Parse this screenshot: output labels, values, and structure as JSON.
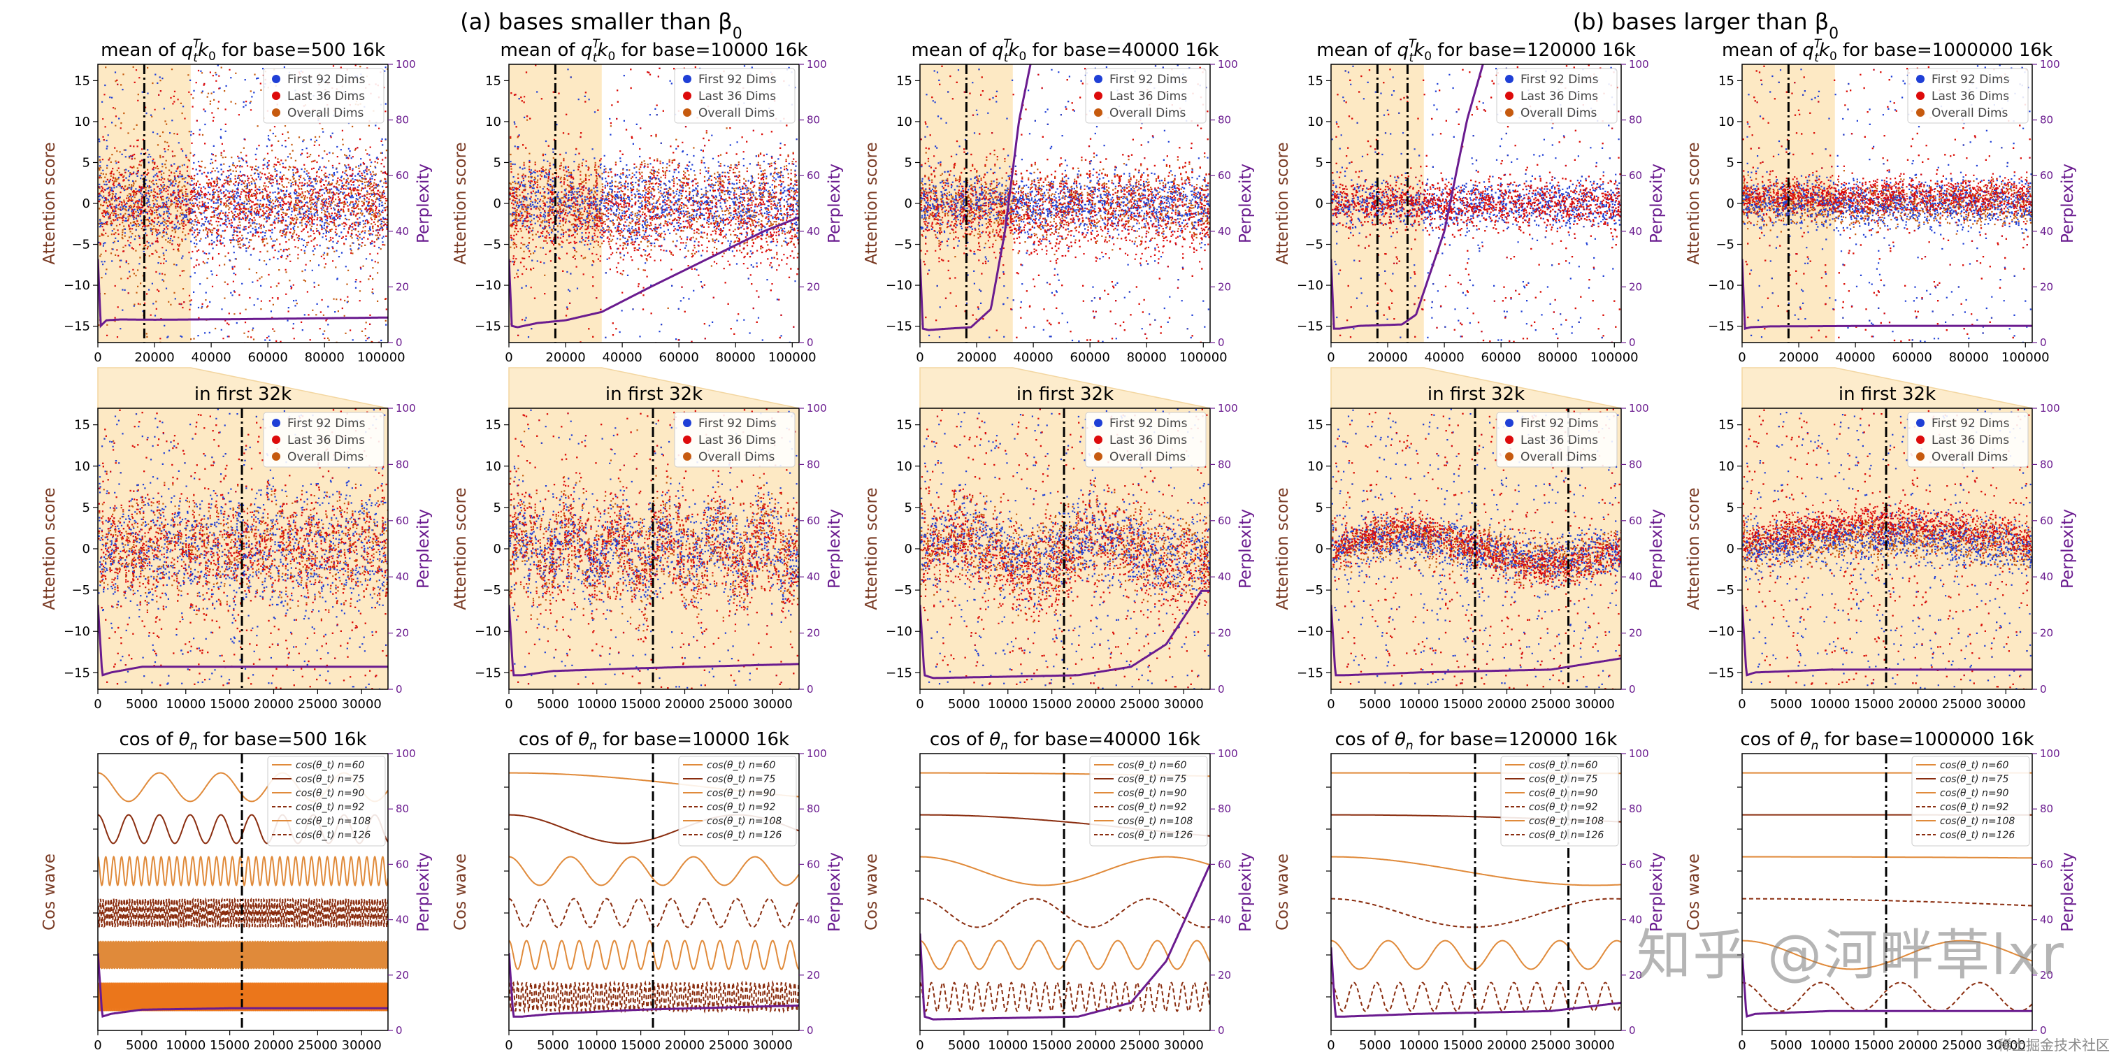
{
  "header": {
    "left_caption": "(a)  bases smaller than β",
    "left_caption_sub": "0",
    "right_caption": "(b)  bases larger than β",
    "right_caption_sub": "0"
  },
  "watermark": {
    "main": "知乎 @河畔草lxr",
    "corner": "稀土掘金技术社区"
  },
  "colors": {
    "first_dims": "#1f3fd6",
    "last_dims": "#dd0a0a",
    "overall_dims": "#c65a0e",
    "perplexity": "#6a1b8f",
    "shade": "#fde9c4",
    "cos_light": "#e08a3a",
    "cos_dark": "#8a2d0f",
    "cos_fill": "#f07a1c"
  },
  "chart_data": [
    {
      "type": "scatter",
      "row": "mean",
      "base_label": "500",
      "title_prefix": "mean of ",
      "title_math": "q",
      "title_suffix": " for base=500 16k",
      "ylabel": "Attention score",
      "ylabel_right": "Perplexity",
      "xlim": [
        0,
        102400
      ],
      "ylim": [
        -17,
        17
      ],
      "ylim_right": [
        0,
        100
      ],
      "xticks": [
        0,
        20000,
        40000,
        60000,
        80000,
        100000
      ],
      "yticks": [
        -15,
        -10,
        -5,
        0,
        5,
        10,
        15
      ],
      "yticks_right": [
        0,
        20,
        40,
        60,
        80,
        100
      ],
      "shaded_range": [
        0,
        32768
      ],
      "vlines": [
        16384
      ],
      "legend": [
        "First 92 Dims",
        "Last 36 Dims",
        "Overall Dims"
      ],
      "scatter_model": {
        "first_spread": 5.0,
        "last_spread": 5.0,
        "last_bias": 0,
        "outlier_frac": 0.25
      },
      "perplexity_curve": {
        "x": [
          0,
          1000,
          3000,
          8000,
          20000,
          50000,
          102400
        ],
        "y": [
          30,
          6,
          8,
          8.3,
          8.2,
          8.4,
          9
        ]
      }
    },
    {
      "type": "scatter",
      "row": "mean",
      "base_label": "10000",
      "title_prefix": "mean of ",
      "title_math": "q",
      "title_suffix": " for base=10000 16k",
      "ylabel": "Attention score",
      "ylabel_right": "Perplexity",
      "xlim": [
        0,
        102400
      ],
      "ylim": [
        -17,
        17
      ],
      "ylim_right": [
        0,
        100
      ],
      "xticks": [
        0,
        20000,
        40000,
        60000,
        80000,
        100000
      ],
      "yticks": [
        -15,
        -10,
        -5,
        0,
        5,
        10,
        15
      ],
      "yticks_right": [
        0,
        20,
        40,
        60,
        80,
        100
      ],
      "shaded_range": [
        0,
        32768
      ],
      "vlines": [
        16384
      ],
      "legend": [
        "First 92 Dims",
        "Last 36 Dims",
        "Overall Dims"
      ],
      "scatter_model": {
        "first_spread": 4.5,
        "last_spread": 6.0,
        "last_bias": -1,
        "outlier_frac": 0.15
      },
      "perplexity_curve": {
        "x": [
          0,
          1000,
          3000,
          10000,
          20000,
          32768,
          50000,
          70000,
          90000,
          102400
        ],
        "y": [
          30,
          6,
          5.5,
          7,
          8,
          11,
          20,
          30,
          40,
          45
        ]
      }
    },
    {
      "type": "scatter",
      "row": "mean",
      "base_label": "40000",
      "title_prefix": "mean of ",
      "title_math": "q",
      "title_suffix": " for base=40000 16k",
      "ylabel": "Attention score",
      "ylabel_right": "Perplexity",
      "xlim": [
        0,
        102400
      ],
      "ylim": [
        -17,
        17
      ],
      "ylim_right": [
        0,
        100
      ],
      "xticks": [
        0,
        20000,
        40000,
        60000,
        80000,
        100000
      ],
      "yticks": [
        -15,
        -10,
        -5,
        0,
        5,
        10,
        15
      ],
      "yticks_right": [
        0,
        20,
        40,
        60,
        80,
        100
      ],
      "shaded_range": [
        0,
        32768
      ],
      "vlines": [
        16384
      ],
      "legend": [
        "First 92 Dims",
        "Last 36 Dims",
        "Overall Dims"
      ],
      "scatter_model": {
        "first_spread": 3.0,
        "last_spread": 5.0,
        "last_bias": -1,
        "outlier_frac": 0.2
      },
      "perplexity_curve": {
        "x": [
          0,
          1000,
          3000,
          10000,
          18000,
          25000,
          30000,
          35000,
          40000
        ],
        "y": [
          30,
          5,
          4.5,
          5,
          5.5,
          12,
          40,
          80,
          105
        ]
      }
    },
    {
      "type": "scatter",
      "row": "mean",
      "base_label": "120000",
      "title_prefix": "mean of ",
      "title_math": "q",
      "title_suffix": " for base=120000 16k",
      "ylabel": "Attention score",
      "ylabel_right": "Perplexity",
      "xlim": [
        0,
        102400
      ],
      "ylim": [
        -17,
        17
      ],
      "ylim_right": [
        0,
        100
      ],
      "xticks": [
        0,
        20000,
        40000,
        60000,
        80000,
        100000
      ],
      "yticks": [
        -15,
        -10,
        -5,
        0,
        5,
        10,
        15
      ],
      "yticks_right": [
        0,
        20,
        40,
        60,
        80,
        100
      ],
      "shaded_range": [
        0,
        32768
      ],
      "vlines": [
        16384,
        27000
      ],
      "legend": [
        "First 92 Dims",
        "Last 36 Dims",
        "Overall Dims"
      ],
      "scatter_model": {
        "first_spread": 2.5,
        "last_spread": 2.5,
        "last_bias": 0,
        "outlier_frac": 0.2
      },
      "perplexity_curve": {
        "x": [
          0,
          1000,
          3000,
          10000,
          25000,
          30000,
          40000,
          48000,
          55000
        ],
        "y": [
          30,
          5,
          5,
          6,
          6.5,
          10,
          40,
          80,
          105
        ]
      }
    },
    {
      "type": "scatter",
      "row": "mean",
      "base_label": "1000000",
      "title_prefix": "mean of ",
      "title_math": "q",
      "title_suffix": " for base=1000000 16k",
      "ylabel": "Attention score",
      "ylabel_right": "Perplexity",
      "xlim": [
        0,
        102400
      ],
      "ylim": [
        -17,
        17
      ],
      "ylim_right": [
        0,
        100
      ],
      "xticks": [
        0,
        20000,
        40000,
        60000,
        80000,
        100000
      ],
      "yticks": [
        -15,
        -10,
        -5,
        0,
        5,
        10,
        15
      ],
      "yticks_right": [
        0,
        20,
        40,
        60,
        80,
        100
      ],
      "shaded_range": [
        0,
        32768
      ],
      "vlines": [
        16384
      ],
      "legend": [
        "First 92 Dims",
        "Last 36 Dims",
        "Overall Dims"
      ],
      "scatter_model": {
        "first_spread": 2.5,
        "last_spread": 2.0,
        "last_bias": 1,
        "outlier_frac": 0.2
      },
      "perplexity_curve": {
        "x": [
          0,
          1000,
          3000,
          10000,
          50000,
          102400
        ],
        "y": [
          30,
          5,
          5.5,
          5.8,
          6,
          6
        ]
      }
    },
    {
      "type": "scatter",
      "row": "zoom",
      "title": "in first 32k",
      "ylabel": "Attention score",
      "ylabel_right": "Perplexity",
      "xlim": [
        0,
        33000
      ],
      "ylim": [
        -17,
        17
      ],
      "ylim_right": [
        0,
        100
      ],
      "xticks": [
        0,
        5000,
        10000,
        15000,
        20000,
        25000,
        30000
      ],
      "yticks": [
        -15,
        -10,
        -5,
        0,
        5,
        10,
        15
      ],
      "yticks_right": [
        0,
        20,
        40,
        60,
        80,
        100
      ],
      "vlines": [
        16384
      ],
      "legend": [
        "First 92 Dims",
        "Last 36 Dims",
        "Overall Dims"
      ],
      "scatter_model": {
        "first_spread": 6.0,
        "last_spread": 5.0,
        "last_bias": 0,
        "outlier_frac": 0.3,
        "freq": 40
      },
      "perplexity_curve": {
        "x": [
          0,
          500,
          1500,
          5000,
          15000,
          33000
        ],
        "y": [
          30,
          5,
          6,
          8,
          8,
          8
        ]
      }
    },
    {
      "type": "scatter",
      "row": "zoom",
      "title": "in first 32k",
      "ylabel": "Attention score",
      "ylabel_right": "Perplexity",
      "xlim": [
        0,
        33000
      ],
      "ylim": [
        -17,
        17
      ],
      "ylim_right": [
        0,
        100
      ],
      "xticks": [
        0,
        5000,
        10000,
        15000,
        20000,
        25000,
        30000
      ],
      "yticks": [
        -15,
        -10,
        -5,
        0,
        5,
        10,
        15
      ],
      "yticks_right": [
        0,
        20,
        40,
        60,
        80,
        100
      ],
      "vlines": [
        16384
      ],
      "legend": [
        "First 92 Dims",
        "Last 36 Dims",
        "Overall Dims"
      ],
      "scatter_model": {
        "first_spread": 5.0,
        "last_spread": 6.0,
        "last_bias": 0,
        "outlier_frac": 0.2,
        "freq": 6
      },
      "perplexity_curve": {
        "x": [
          0,
          500,
          1500,
          5000,
          15000,
          33000
        ],
        "y": [
          30,
          5,
          5,
          6.5,
          7.5,
          9
        ]
      }
    },
    {
      "type": "scatter",
      "row": "zoom",
      "title": "in first 32k",
      "ylabel": "Attention score",
      "ylabel_right": "Perplexity",
      "xlim": [
        0,
        33000
      ],
      "ylim": [
        -17,
        17
      ],
      "ylim_right": [
        0,
        100
      ],
      "xticks": [
        0,
        5000,
        10000,
        15000,
        20000,
        25000,
        30000
      ],
      "yticks": [
        -15,
        -10,
        -5,
        0,
        5,
        10,
        15
      ],
      "yticks_right": [
        0,
        20,
        40,
        60,
        80,
        100
      ],
      "vlines": [
        16384
      ],
      "legend": [
        "First 92 Dims",
        "Last 36 Dims",
        "Overall Dims"
      ],
      "scatter_model": {
        "first_spread": 4.0,
        "last_spread": 5.0,
        "last_bias": -1,
        "outlier_frac": 0.3,
        "freq": 2
      },
      "perplexity_curve": {
        "x": [
          0,
          500,
          1500,
          10000,
          18000,
          24000,
          28000,
          32000
        ],
        "y": [
          30,
          5,
          4,
          4.5,
          5,
          8,
          16,
          35
        ]
      }
    },
    {
      "type": "scatter",
      "row": "zoom",
      "title": "in first 32k",
      "ylabel": "Attention score",
      "ylabel_right": "Perplexity",
      "xlim": [
        0,
        33000
      ],
      "ylim": [
        -17,
        17
      ],
      "ylim_right": [
        0,
        100
      ],
      "xticks": [
        0,
        5000,
        10000,
        15000,
        20000,
        25000,
        30000
      ],
      "yticks": [
        -15,
        -10,
        -5,
        0,
        5,
        10,
        15
      ],
      "yticks_right": [
        0,
        20,
        40,
        60,
        80,
        100
      ],
      "vlines": [
        16384,
        27000
      ],
      "legend": [
        "First 92 Dims",
        "Last 36 Dims",
        "Overall Dims"
      ],
      "scatter_model": {
        "first_spread": 2.5,
        "last_spread": 2.0,
        "last_bias": 0,
        "outlier_frac": 0.3,
        "freq": 1
      },
      "perplexity_curve": {
        "x": [
          0,
          500,
          1500,
          10000,
          25000,
          33000
        ],
        "y": [
          30,
          5,
          5,
          6,
          7,
          11
        ]
      }
    },
    {
      "type": "scatter",
      "row": "zoom",
      "title": "in first 32k",
      "ylabel": "Attention score",
      "ylabel_right": "Perplexity",
      "xlim": [
        0,
        33000
      ],
      "ylim": [
        -17,
        17
      ],
      "ylim_right": [
        0,
        100
      ],
      "xticks": [
        0,
        5000,
        10000,
        15000,
        20000,
        25000,
        30000
      ],
      "yticks": [
        -15,
        -10,
        -5,
        0,
        5,
        10,
        15
      ],
      "yticks_right": [
        0,
        20,
        40,
        60,
        80,
        100
      ],
      "vlines": [
        16384
      ],
      "legend": [
        "First 92 Dims",
        "Last 36 Dims",
        "Overall Dims"
      ],
      "scatter_model": {
        "first_spread": 2.5,
        "last_spread": 2.0,
        "last_bias": 1,
        "outlier_frac": 0.3,
        "freq": 0.5
      },
      "perplexity_curve": {
        "x": [
          0,
          500,
          1500,
          10000,
          33000
        ],
        "y": [
          30,
          5,
          6,
          7,
          7
        ]
      }
    },
    {
      "type": "line",
      "row": "cos",
      "title_prefix": "cos of ",
      "title_suffix": " for base=500 16k",
      "ylabel": "Cos wave",
      "ylabel_right": "Perplexity",
      "xlim": [
        0,
        33000
      ],
      "ylim_right": [
        0,
        100
      ],
      "xticks": [
        0,
        5000,
        10000,
        15000,
        20000,
        25000,
        30000
      ],
      "yticks_right": [
        0,
        20,
        40,
        60,
        80,
        100
      ],
      "vlines": [
        16384
      ],
      "legend": [
        "cos(θ_t) n=60",
        "cos(θ_t) n=75",
        "cos(θ_t) n=90",
        "cos(θ_t) n=92",
        "cos(θ_t) n=108",
        "cos(θ_t) n=126"
      ],
      "series_periods": [
        7000,
        3500,
        900,
        300,
        80,
        20
      ],
      "perplexity_curve": {
        "x": [
          0,
          500,
          1500,
          5000,
          15000,
          33000
        ],
        "y": [
          28,
          5,
          6,
          7.5,
          8,
          8
        ]
      }
    },
    {
      "type": "line",
      "row": "cos",
      "title_prefix": "cos of ",
      "title_suffix": " for base=10000 16k",
      "ylabel": "Cos wave",
      "ylabel_right": "Perplexity",
      "xlim": [
        0,
        33000
      ],
      "ylim_right": [
        0,
        100
      ],
      "xticks": [
        0,
        5000,
        10000,
        15000,
        20000,
        25000,
        30000
      ],
      "yticks_right": [
        0,
        20,
        40,
        60,
        80,
        100
      ],
      "vlines": [
        16384
      ],
      "legend": [
        "cos(θ_t) n=60",
        "cos(θ_t) n=75",
        "cos(θ_t) n=90",
        "cos(θ_t) n=92",
        "cos(θ_t) n=108",
        "cos(θ_t) n=126"
      ],
      "series_periods": [
        90000,
        26000,
        7000,
        3700,
        2000,
        500
      ],
      "perplexity_curve": {
        "x": [
          0,
          500,
          1500,
          5000,
          15000,
          33000
        ],
        "y": [
          28,
          5,
          5,
          6,
          7.5,
          9
        ]
      }
    },
    {
      "type": "line",
      "row": "cos",
      "title_prefix": "cos of ",
      "title_suffix": " for base=40000 16k",
      "ylabel": "Cos wave",
      "ylabel_right": "Perplexity",
      "xlim": [
        0,
        33000
      ],
      "ylim_right": [
        0,
        100
      ],
      "xticks": [
        0,
        5000,
        10000,
        15000,
        20000,
        25000,
        30000
      ],
      "yticks_right": [
        0,
        20,
        40,
        60,
        80,
        100
      ],
      "vlines": [
        16384
      ],
      "legend": [
        "cos(θ_t) n=60",
        "cos(θ_t) n=75",
        "cos(θ_t) n=90",
        "cos(θ_t) n=92",
        "cos(θ_t) n=108",
        "cos(θ_t) n=126"
      ],
      "series_periods": [
        300000,
        100000,
        28000,
        13000,
        4500,
        1300
      ],
      "perplexity_curve": {
        "x": [
          0,
          500,
          1500,
          10000,
          18000,
          24000,
          28000,
          33000
        ],
        "y": [
          35,
          5,
          4,
          4.5,
          5,
          10,
          25,
          60
        ]
      }
    },
    {
      "type": "line",
      "row": "cos",
      "title_prefix": "cos of ",
      "title_suffix": " for base=120000 16k",
      "ylabel": "Cos wave",
      "ylabel_right": "Perplexity",
      "xlim": [
        0,
        33000
      ],
      "ylim_right": [
        0,
        100
      ],
      "xticks": [
        0,
        5000,
        10000,
        15000,
        20000,
        25000,
        30000
      ],
      "yticks_right": [
        0,
        20,
        40,
        60,
        80,
        100
      ],
      "vlines": [
        16384,
        27000
      ],
      "legend": [
        "cos(θ_t) n=60",
        "cos(θ_t) n=75",
        "cos(θ_t) n=90",
        "cos(θ_t) n=92",
        "cos(θ_t) n=108",
        "cos(θ_t) n=126"
      ],
      "series_periods": [
        800000,
        200000,
        60000,
        32000,
        6500,
        2600
      ],
      "perplexity_curve": {
        "x": [
          0,
          500,
          1500,
          10000,
          25000,
          33000
        ],
        "y": [
          30,
          5,
          5,
          6,
          7,
          10
        ]
      }
    },
    {
      "type": "line",
      "row": "cos",
      "title_prefix": "cos of ",
      "title_suffix": " for base=1000000 16k",
      "ylabel": "Cos wave",
      "ylabel_right": "Perplexity",
      "xlim": [
        0,
        33000
      ],
      "ylim_right": [
        0,
        100
      ],
      "xticks": [
        0,
        5000,
        10000,
        15000,
        20000,
        25000,
        30000
      ],
      "yticks_right": [
        0,
        20,
        40,
        60,
        80,
        100
      ],
      "vlines": [
        16384
      ],
      "legend": [
        "cos(θ_t) n=60",
        "cos(θ_t) n=75",
        "cos(θ_t) n=90",
        "cos(θ_t) n=92",
        "cos(θ_t) n=108",
        "cos(θ_t) n=126"
      ],
      "series_periods": [
        9000000,
        2000000,
        500000,
        200000,
        25000,
        9000
      ],
      "perplexity_curve": {
        "x": [
          0,
          500,
          1500,
          10000,
          33000
        ],
        "y": [
          28,
          5,
          6,
          7,
          7
        ]
      }
    }
  ]
}
